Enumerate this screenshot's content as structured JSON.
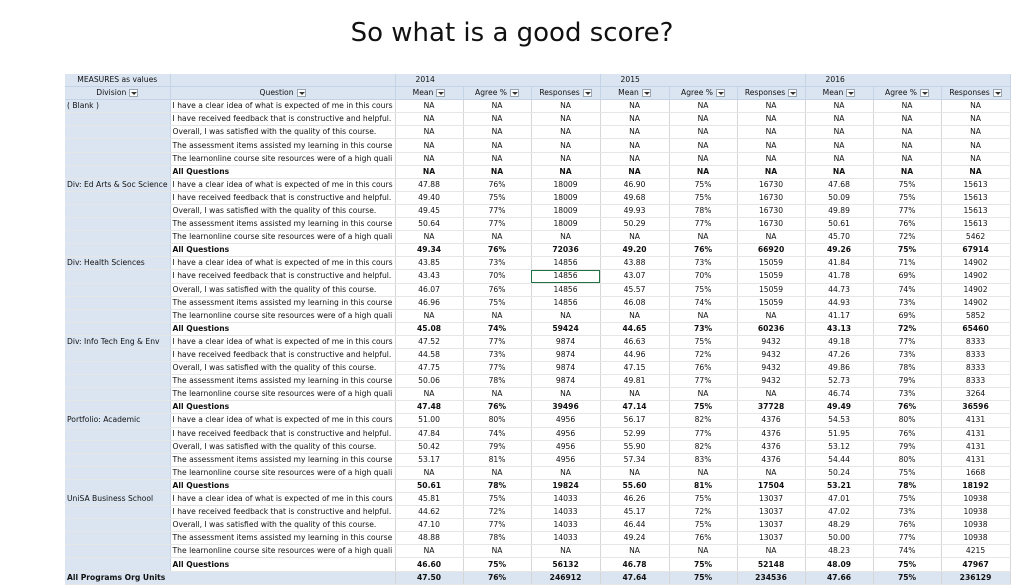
{
  "slide_title": "So what is a good score?",
  "pivot": {
    "measures_label": "MEASURES as values",
    "division_label": "Division",
    "question_label": "Question",
    "years": [
      "2014",
      "2015",
      "2016"
    ],
    "measure_labels": [
      "Mean",
      "Agree %",
      "Responses"
    ],
    "questions": [
      "I have a clear idea of what is expected of me in this cours",
      "I have received feedback that is constructive and helpful.",
      "Overall, I was satisfied with the quality of this course.",
      "The assessment items assisted my learning in this course",
      "The learnonline course site resources were of a high quali"
    ],
    "total_label": "All Questions",
    "grand_total_label": "All Programs Org Units",
    "groups": [
      {
        "division": "( Blank )",
        "rows": [
          [
            "NA",
            "NA",
            "NA",
            "NA",
            "NA",
            "NA",
            "NA",
            "NA",
            "NA"
          ],
          [
            "NA",
            "NA",
            "NA",
            "NA",
            "NA",
            "NA",
            "NA",
            "NA",
            "NA"
          ],
          [
            "NA",
            "NA",
            "NA",
            "NA",
            "NA",
            "NA",
            "NA",
            "NA",
            "NA"
          ],
          [
            "NA",
            "NA",
            "NA",
            "NA",
            "NA",
            "NA",
            "NA",
            "NA",
            "NA"
          ],
          [
            "NA",
            "NA",
            "NA",
            "NA",
            "NA",
            "NA",
            "NA",
            "NA",
            "NA"
          ]
        ],
        "total": [
          "NA",
          "NA",
          "NA",
          "NA",
          "NA",
          "NA",
          "NA",
          "NA",
          "NA"
        ]
      },
      {
        "division": "Div: Ed Arts & Soc Science",
        "rows": [
          [
            "47.88",
            "76%",
            "18009",
            "46.90",
            "75%",
            "16730",
            "47.68",
            "75%",
            "15613"
          ],
          [
            "49.40",
            "75%",
            "18009",
            "49.68",
            "75%",
            "16730",
            "50.09",
            "75%",
            "15613"
          ],
          [
            "49.45",
            "77%",
            "18009",
            "49.93",
            "78%",
            "16730",
            "49.89",
            "77%",
            "15613"
          ],
          [
            "50.64",
            "77%",
            "18009",
            "50.29",
            "77%",
            "16730",
            "50.61",
            "76%",
            "15613"
          ],
          [
            "NA",
            "NA",
            "NA",
            "NA",
            "NA",
            "NA",
            "45.70",
            "72%",
            "5462"
          ]
        ],
        "total": [
          "49.34",
          "76%",
          "72036",
          "49.20",
          "76%",
          "66920",
          "49.26",
          "75%",
          "67914"
        ]
      },
      {
        "division": "Div: Health Sciences",
        "rows": [
          [
            "43.85",
            "73%",
            "14856",
            "43.88",
            "73%",
            "15059",
            "41.84",
            "71%",
            "14902"
          ],
          [
            "43.43",
            "70%",
            "14856",
            "43.07",
            "70%",
            "15059",
            "41.78",
            "69%",
            "14902"
          ],
          [
            "46.07",
            "76%",
            "14856",
            "45.57",
            "75%",
            "15059",
            "44.73",
            "74%",
            "14902"
          ],
          [
            "46.96",
            "75%",
            "14856",
            "46.08",
            "74%",
            "15059",
            "44.93",
            "73%",
            "14902"
          ],
          [
            "NA",
            "NA",
            "NA",
            "NA",
            "NA",
            "NA",
            "41.17",
            "69%",
            "5852"
          ]
        ],
        "total": [
          "45.08",
          "74%",
          "59424",
          "44.65",
          "73%",
          "60236",
          "43.13",
          "72%",
          "65460"
        ]
      },
      {
        "division": "Div: Info Tech Eng & Env",
        "rows": [
          [
            "47.52",
            "77%",
            "9874",
            "46.63",
            "75%",
            "9432",
            "49.18",
            "77%",
            "8333"
          ],
          [
            "44.58",
            "73%",
            "9874",
            "44.96",
            "72%",
            "9432",
            "47.26",
            "73%",
            "8333"
          ],
          [
            "47.75",
            "77%",
            "9874",
            "47.15",
            "76%",
            "9432",
            "49.86",
            "78%",
            "8333"
          ],
          [
            "50.06",
            "78%",
            "9874",
            "49.81",
            "77%",
            "9432",
            "52.73",
            "79%",
            "8333"
          ],
          [
            "NA",
            "NA",
            "NA",
            "NA",
            "NA",
            "NA",
            "46.74",
            "73%",
            "3264"
          ]
        ],
        "total": [
          "47.48",
          "76%",
          "39496",
          "47.14",
          "75%",
          "37728",
          "49.49",
          "76%",
          "36596"
        ]
      },
      {
        "division": "Portfolio: Academic",
        "rows": [
          [
            "51.00",
            "80%",
            "4956",
            "56.17",
            "82%",
            "4376",
            "54.53",
            "80%",
            "4131"
          ],
          [
            "47.84",
            "74%",
            "4956",
            "52.99",
            "77%",
            "4376",
            "51.95",
            "76%",
            "4131"
          ],
          [
            "50.42",
            "79%",
            "4956",
            "55.90",
            "82%",
            "4376",
            "53.12",
            "79%",
            "4131"
          ],
          [
            "53.17",
            "81%",
            "4956",
            "57.34",
            "83%",
            "4376",
            "54.44",
            "80%",
            "4131"
          ],
          [
            "NA",
            "NA",
            "NA",
            "NA",
            "NA",
            "NA",
            "50.24",
            "75%",
            "1668"
          ]
        ],
        "total": [
          "50.61",
          "78%",
          "19824",
          "55.60",
          "81%",
          "17504",
          "53.21",
          "78%",
          "18192"
        ]
      },
      {
        "division": "UniSA Business School",
        "rows": [
          [
            "45.81",
            "75%",
            "14033",
            "46.26",
            "75%",
            "13037",
            "47.01",
            "75%",
            "10938"
          ],
          [
            "44.62",
            "72%",
            "14033",
            "45.17",
            "72%",
            "13037",
            "47.02",
            "73%",
            "10938"
          ],
          [
            "47.10",
            "77%",
            "14033",
            "46.44",
            "75%",
            "13037",
            "48.29",
            "76%",
            "10938"
          ],
          [
            "48.88",
            "78%",
            "14033",
            "49.24",
            "76%",
            "13037",
            "50.00",
            "77%",
            "10938"
          ],
          [
            "NA",
            "NA",
            "NA",
            "NA",
            "NA",
            "NA",
            "48.23",
            "74%",
            "4215"
          ]
        ],
        "total": [
          "46.60",
          "75%",
          "56132",
          "46.78",
          "75%",
          "52148",
          "48.09",
          "75%",
          "47967"
        ]
      }
    ],
    "grand_total": [
      "47.50",
      "76%",
      "246912",
      "47.64",
      "75%",
      "234536",
      "47.66",
      "75%",
      "236129"
    ]
  }
}
